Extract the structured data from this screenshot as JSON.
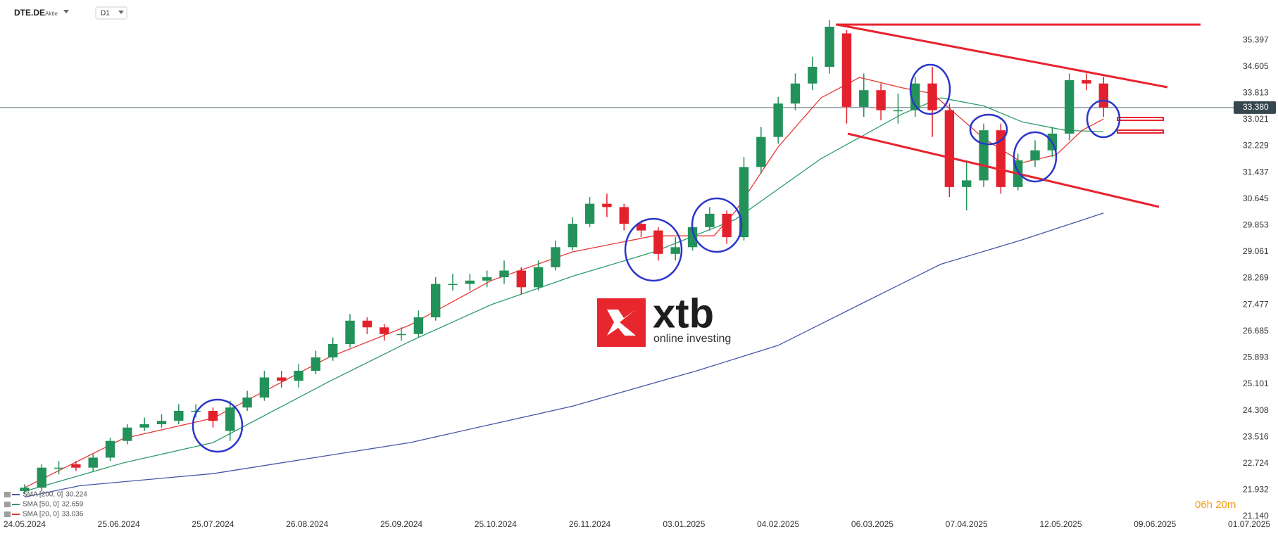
{
  "header": {
    "symbol": "DTE.DE",
    "instrument_type": "Aktie",
    "timeframe": "D1"
  },
  "watermark": {
    "brand": "xtb",
    "tagline": "online investing"
  },
  "timer": "06h 20m",
  "chart_data": {
    "type": "candlestick",
    "x": [
      0,
      4,
      8,
      12,
      16,
      20,
      24,
      28,
      32,
      36,
      40,
      44,
      48,
      52,
      56,
      60,
      64,
      68,
      72,
      76,
      80,
      84,
      88,
      92,
      96,
      100,
      104,
      108,
      112,
      116,
      120,
      124,
      128,
      132,
      136,
      140,
      144,
      148,
      152,
      156,
      160,
      164,
      168,
      172,
      176,
      180,
      184,
      188,
      192,
      196,
      200,
      204,
      208,
      212,
      216,
      220,
      224,
      228,
      232,
      236,
      240,
      244,
      248,
      252
    ],
    "open": [
      21.9,
      22.0,
      22.6,
      22.7,
      22.6,
      22.9,
      23.4,
      23.8,
      23.9,
      24.0,
      24.3,
      24.3,
      23.7,
      24.4,
      24.7,
      25.3,
      25.2,
      25.5,
      25.9,
      26.3,
      27.0,
      26.8,
      26.6,
      26.6,
      27.1,
      28.1,
      28.1,
      28.2,
      28.3,
      28.5,
      28.0,
      28.6,
      29.2,
      29.9,
      30.5,
      30.4,
      29.9,
      29.7,
      29.0,
      29.2,
      29.8,
      30.2,
      29.5,
      31.6,
      32.5,
      33.5,
      34.1,
      34.6,
      35.6,
      33.4,
      33.9,
      33.3,
      33.3,
      34.1,
      33.3,
      31.0,
      31.2,
      32.7,
      31.0,
      31.8,
      32.1,
      32.6,
      34.2,
      34.1
    ],
    "high": [
      22.1,
      22.7,
      22.8,
      22.8,
      23.0,
      23.5,
      23.9,
      24.1,
      24.2,
      24.5,
      24.5,
      24.4,
      24.6,
      24.9,
      25.5,
      25.5,
      25.7,
      26.1,
      26.5,
      27.2,
      27.1,
      26.9,
      26.8,
      27.3,
      28.3,
      28.4,
      28.4,
      28.5,
      28.8,
      28.6,
      28.8,
      29.4,
      30.1,
      30.7,
      30.8,
      30.5,
      30.0,
      29.8,
      29.5,
      30.0,
      30.4,
      30.3,
      31.9,
      32.8,
      33.7,
      34.4,
      34.9,
      36.0,
      35.7,
      34.4,
      34.1,
      33.8,
      34.3,
      34.6,
      33.5,
      31.8,
      32.9,
      32.9,
      32.0,
      32.4,
      32.8,
      34.4,
      34.4,
      34.3
    ],
    "low": [
      21.8,
      21.9,
      22.4,
      22.5,
      22.5,
      22.8,
      23.3,
      23.7,
      23.8,
      23.9,
      24.1,
      23.8,
      23.4,
      24.3,
      24.6,
      25.0,
      25.0,
      25.4,
      25.8,
      26.2,
      26.6,
      26.4,
      26.4,
      26.5,
      27.0,
      27.9,
      27.9,
      28.0,
      28.1,
      27.8,
      27.9,
      28.5,
      29.1,
      29.8,
      30.1,
      29.7,
      29.5,
      28.8,
      28.8,
      29.1,
      29.7,
      29.3,
      29.4,
      31.4,
      32.3,
      33.3,
      33.9,
      34.4,
      32.9,
      33.1,
      33.0,
      32.9,
      33.1,
      32.5,
      30.7,
      30.3,
      31.0,
      30.8,
      30.9,
      31.6,
      31.9,
      32.4,
      33.9,
      33.1
    ],
    "close": [
      22.0,
      22.6,
      22.6,
      22.6,
      22.9,
      23.4,
      23.8,
      23.9,
      24.0,
      24.3,
      24.3,
      24.0,
      24.4,
      24.7,
      25.3,
      25.2,
      25.5,
      25.9,
      26.3,
      27.0,
      26.8,
      26.6,
      26.6,
      27.1,
      28.1,
      28.1,
      28.2,
      28.3,
      28.5,
      28.0,
      28.6,
      29.2,
      29.9,
      30.5,
      30.4,
      29.9,
      29.7,
      29.0,
      29.2,
      29.8,
      30.2,
      29.5,
      31.6,
      32.5,
      33.5,
      34.1,
      34.6,
      35.8,
      33.4,
      33.9,
      33.3,
      33.3,
      34.1,
      33.3,
      31.0,
      31.2,
      32.7,
      31.0,
      31.8,
      32.1,
      32.6,
      34.2,
      34.1,
      33.38
    ],
    "up_color": "#23915a",
    "down_color": "#e3212d",
    "series": [
      {
        "name": "SMA [200,  0]",
        "color": "#4656a8",
        "x": [
          0,
          13,
          44,
          90,
          128,
          157,
          176,
          195,
          214,
          233,
          252
        ],
        "values": [
          21.72,
          22.06,
          22.42,
          23.35,
          24.44,
          25.5,
          26.26,
          27.48,
          28.69,
          29.42,
          30.224
        ]
      },
      {
        "name": "SMA [50,  0]",
        "color": "#2e9b6a",
        "x": [
          0,
          23,
          44,
          71,
          90,
          109,
          128,
          147,
          166,
          186,
          205,
          214,
          224,
          233,
          243,
          252
        ],
        "values": [
          21.89,
          22.74,
          23.35,
          25.17,
          26.38,
          27.48,
          28.33,
          29.06,
          30.03,
          31.85,
          33.19,
          33.67,
          33.43,
          32.95,
          32.7,
          32.659
        ]
      },
      {
        "name": "SMA [20,  0]",
        "color": "#e53935",
        "x": [
          0,
          23,
          44,
          71,
          90,
          109,
          128,
          147,
          161,
          166,
          176,
          186,
          195,
          205,
          212,
          224,
          233,
          241,
          247,
          252
        ],
        "values": [
          22.0,
          23.47,
          24.08,
          25.9,
          26.87,
          28.2,
          29.06,
          29.54,
          29.54,
          30.27,
          32.2,
          33.67,
          34.28,
          33.97,
          33.8,
          32.46,
          31.73,
          31.97,
          32.7,
          33.036
        ]
      }
    ],
    "xlim": [
      -5.74,
      280.4
    ],
    "ylim": [
      21.14,
      36.6
    ],
    "xticks": [
      {
        "value": 0,
        "label": "24.05.2024"
      },
      {
        "value": 22,
        "label": "25.06.2024"
      },
      {
        "value": 44,
        "label": "25.07.2024"
      },
      {
        "value": 66,
        "label": "26.08.2024"
      },
      {
        "value": 88,
        "label": "25.09.2024"
      },
      {
        "value": 110,
        "label": "25.10.2024"
      },
      {
        "value": 132,
        "label": "26.11.2024"
      },
      {
        "value": 154,
        "label": "03.01.2025"
      },
      {
        "value": 176,
        "label": "04.02.2025"
      },
      {
        "value": 198,
        "label": "06.03.2025"
      },
      {
        "value": 220,
        "label": "07.04.2025"
      },
      {
        "value": 242,
        "label": "12.05.2025"
      },
      {
        "value": 264,
        "label": "09.06.2025"
      },
      {
        "value": 286,
        "label": "01.07.2025"
      }
    ],
    "yticks": [
      {
        "value": 21.14,
        "label": "21.140"
      },
      21.932,
      22.724,
      23.516,
      24.308,
      25.101,
      25.893,
      26.685,
      27.477,
      28.269,
      29.061,
      29.853,
      30.645,
      31.437,
      32.229,
      33.021,
      33.813,
      34.605,
      35.397
    ],
    "last_price": {
      "value": 33.38,
      "label": "33.380"
    },
    "grid": false
  }
}
